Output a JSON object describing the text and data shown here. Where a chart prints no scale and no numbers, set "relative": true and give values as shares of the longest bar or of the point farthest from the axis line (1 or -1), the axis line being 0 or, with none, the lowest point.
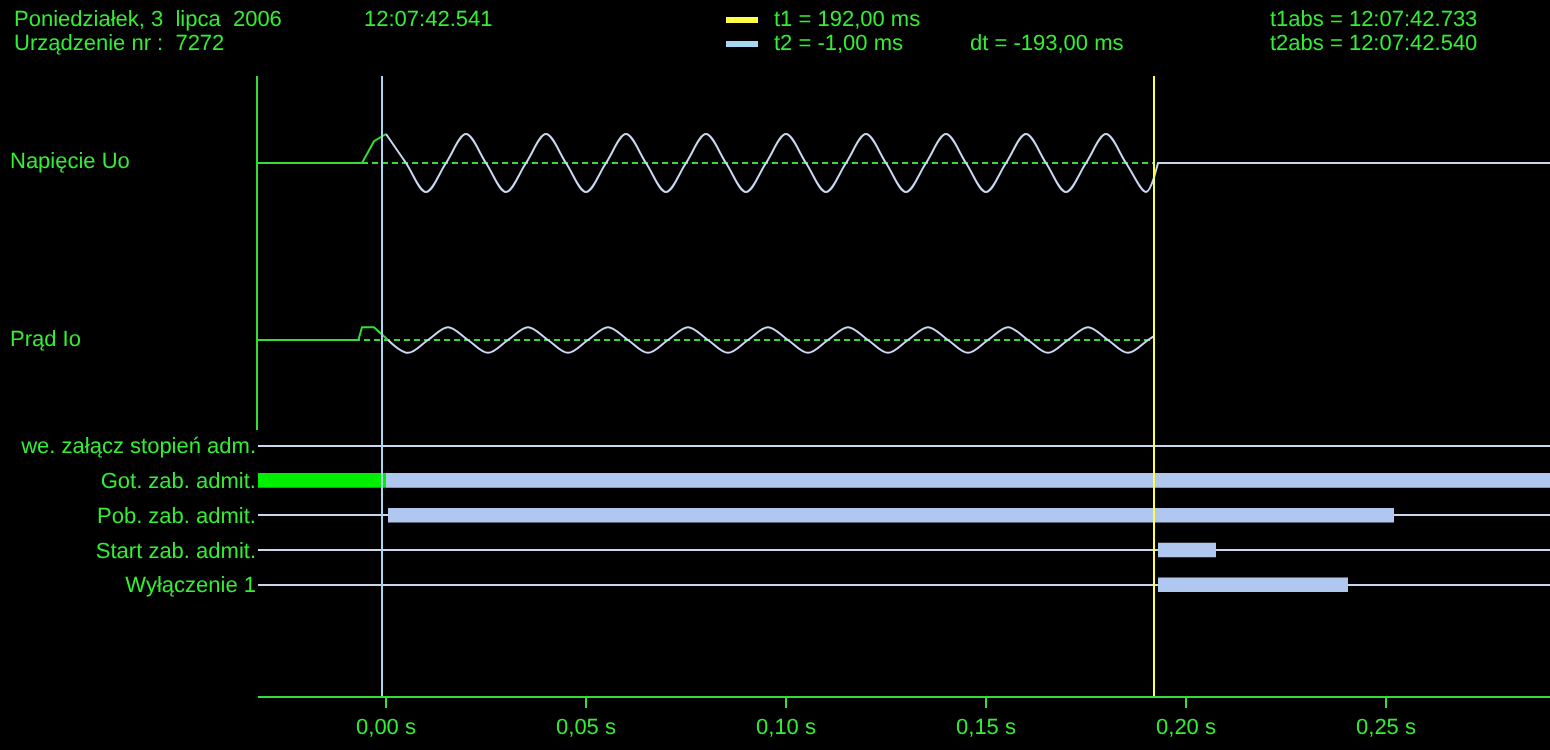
{
  "chart_data": [
    {
      "type": "line",
      "relative": true,
      "ylabel": "Napięcie Uo",
      "xlim": [
        -0.032,
        0.291
      ],
      "legend": "top",
      "annotations": [
        "Poniedziałek, 3  lipca  2006",
        "12:07:42.541",
        "Urządzenie nr :  7272",
        "t1abs = 12:07:42.733",
        "t2abs = 12:07:42.540",
        "dt = -193,00 ms"
      ],
      "ref_lines": [
        {
          "axis": "x",
          "value": 0.192,
          "label": "t1 = 192,00 ms",
          "color": "#ffff44"
        },
        {
          "axis": "x",
          "value": -0.001,
          "label": "t2 = -1,00 ms",
          "color": "#a8d8f0"
        }
      ],
      "series": [
        {
          "color": "#33dd33",
          "x": [
            -0.032,
            -0.006,
            -0.003,
            0
          ],
          "values": [
            0,
            0,
            0.75,
            1
          ]
        },
        {
          "color": "#33dd33",
          "line_style": "dashed",
          "x": [
            -0.006,
            0.192
          ],
          "values": [
            0,
            0
          ]
        },
        {
          "color": "#c8d8f0",
          "x": [
            0,
            0.005,
            0.01,
            0.015,
            0.02,
            0.025,
            0.03,
            0.035,
            0.04,
            0.045,
            0.05,
            0.055,
            0.06,
            0.065,
            0.07,
            0.075,
            0.08,
            0.085,
            0.09,
            0.095,
            0.1,
            0.105,
            0.11,
            0.115,
            0.12,
            0.125,
            0.13,
            0.135,
            0.14,
            0.145,
            0.15,
            0.155,
            0.16,
            0.165,
            0.17,
            0.175,
            0.18,
            0.185,
            0.19,
            0.192
          ],
          "values": [
            1,
            0,
            -1,
            0,
            1,
            0,
            -1,
            0,
            1,
            0,
            -1,
            0,
            1,
            0,
            -1,
            0,
            1,
            0,
            -1,
            0,
            1,
            0,
            -1,
            0,
            1,
            0,
            -1,
            0,
            1,
            0,
            -1,
            0,
            1,
            0,
            -1,
            0,
            1,
            0,
            -1,
            -0.5
          ]
        },
        {
          "color": "#c8d8f0",
          "x": [
            0.192,
            0.193,
            0.291
          ],
          "values": [
            -0.5,
            0,
            0
          ]
        }
      ]
    },
    {
      "type": "line",
      "relative": true,
      "ylabel": "Prąd Io",
      "xlim": [
        -0.032,
        0.291
      ],
      "ref_lines": [
        {
          "axis": "x",
          "value": 0.192,
          "color": "#ffff44"
        },
        {
          "axis": "x",
          "value": -0.001,
          "color": "#a8d8f0"
        }
      ],
      "series": [
        {
          "color": "#33dd33",
          "x": [
            -0.032,
            -0.0069,
            -0.006,
            -0.003,
            0.0005
          ],
          "values": [
            0,
            0,
            1,
            1,
            0
          ]
        },
        {
          "color": "#33dd33",
          "line_style": "dashed",
          "x": [
            -0.008,
            0.192
          ],
          "values": [
            0,
            0
          ]
        },
        {
          "color": "#c8d8f0",
          "x": [
            0.0005,
            0.0055,
            0.0105,
            0.0155,
            0.0205,
            0.0255,
            0.0305,
            0.0355,
            0.0405,
            0.0455,
            0.0505,
            0.0555,
            0.0605,
            0.0655,
            0.0705,
            0.0755,
            0.0805,
            0.0855,
            0.0905,
            0.0955,
            0.1005,
            0.1055,
            0.1105,
            0.1155,
            0.1205,
            0.1255,
            0.1305,
            0.1355,
            0.1405,
            0.1455,
            0.1505,
            0.1555,
            0.1605,
            0.1655,
            0.1705,
            0.1755,
            0.1805,
            0.1855,
            0.1905,
            0.192
          ],
          "values": [
            0,
            -1,
            0,
            1,
            0,
            -1,
            0,
            1,
            0,
            -1,
            0,
            1,
            0,
            -1,
            0,
            1,
            0,
            -1,
            0,
            1,
            0,
            -1,
            0,
            1,
            0,
            -1,
            0,
            1,
            0,
            -1,
            0,
            1,
            0,
            -1,
            0,
            1,
            0,
            -1,
            0,
            0.3
          ]
        }
      ]
    },
    {
      "type": "bar",
      "orientation": "horizontal",
      "grid": "y",
      "xlim": [
        -0.032,
        0.291
      ],
      "categories": [
        "we. załącz stopień adm.",
        "Got. zab. admit.",
        "Pob. zab. admit.",
        "Start zab. admit.",
        "Wyłączenie 1"
      ],
      "xticks": [
        {
          "value": 0,
          "label": "0,00 s"
        },
        {
          "value": 0.05,
          "label": "0,05 s"
        },
        {
          "value": 0.1,
          "label": "0,10 s"
        },
        {
          "value": 0.15,
          "label": "0,15 s"
        },
        {
          "value": 0.2,
          "label": "0,20 s"
        },
        {
          "value": 0.25,
          "label": "0,25 s"
        }
      ],
      "ref_lines": [
        {
          "axis": "x",
          "value": 0.192,
          "color": "#ffff44"
        },
        {
          "axis": "x",
          "value": -0.001,
          "color": "#a8d8f0"
        }
      ],
      "series": [
        {
          "color": "#00ee00",
          "values": [
            null,
            0.032,
            null,
            null,
            null
          ],
          "base": [
            null,
            -0.032,
            null,
            null,
            null
          ]
        },
        {
          "color": "#b0c8f0",
          "values": [
            null,
            0.291,
            0.2515,
            0.0145,
            0.0475
          ],
          "base": [
            null,
            0,
            0.0005,
            0.193,
            0.193
          ]
        }
      ]
    }
  ]
}
